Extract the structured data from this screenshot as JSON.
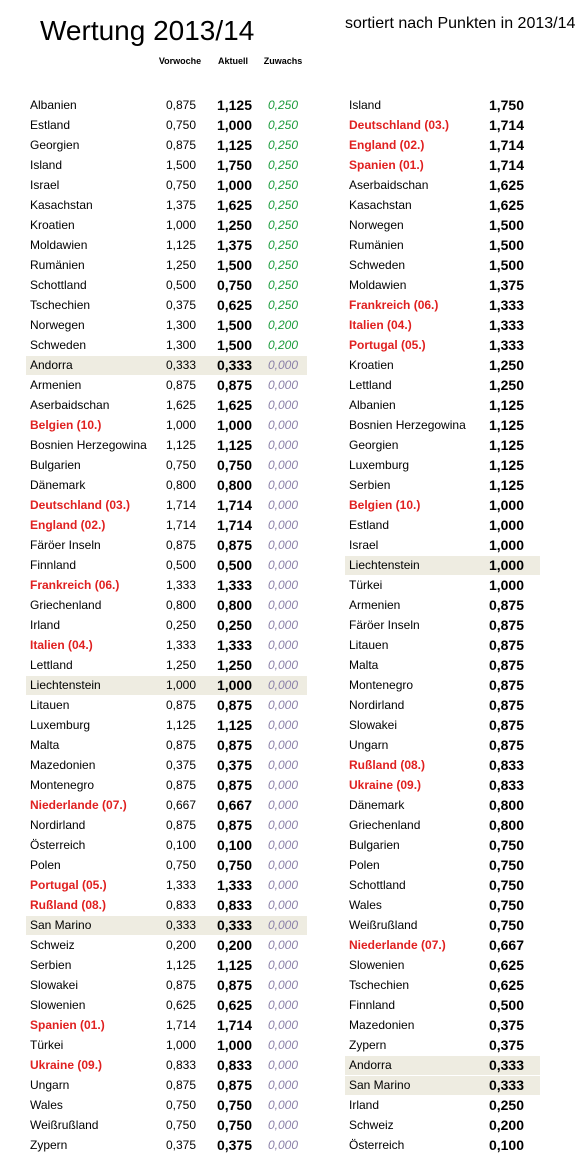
{
  "header": {
    "title": "Wertung 2013/14",
    "sort_note": "sortiert nach Punkten in 2013/14",
    "col_vorwoche": "Vorwoche",
    "col_aktuell": "Aktuell",
    "col_zuwachs": "Zuwachs"
  },
  "colors": {
    "red": "#e02020",
    "gain": "#1a9a3a",
    "none": "#8a80a8",
    "highlight": "#eeece1"
  },
  "left": [
    {
      "name": "Albanien",
      "vorwoche": "0,875",
      "aktuell": "1,125",
      "zuwachs": "0,250",
      "gain": true
    },
    {
      "name": "Estland",
      "vorwoche": "0,750",
      "aktuell": "1,000",
      "zuwachs": "0,250",
      "gain": true
    },
    {
      "name": "Georgien",
      "vorwoche": "0,875",
      "aktuell": "1,125",
      "zuwachs": "0,250",
      "gain": true
    },
    {
      "name": "Island",
      "vorwoche": "1,500",
      "aktuell": "1,750",
      "zuwachs": "0,250",
      "gain": true
    },
    {
      "name": "Israel",
      "vorwoche": "0,750",
      "aktuell": "1,000",
      "zuwachs": "0,250",
      "gain": true
    },
    {
      "name": "Kasachstan",
      "vorwoche": "1,375",
      "aktuell": "1,625",
      "zuwachs": "0,250",
      "gain": true
    },
    {
      "name": "Kroatien",
      "vorwoche": "1,000",
      "aktuell": "1,250",
      "zuwachs": "0,250",
      "gain": true
    },
    {
      "name": "Moldawien",
      "vorwoche": "1,125",
      "aktuell": "1,375",
      "zuwachs": "0,250",
      "gain": true
    },
    {
      "name": "Rumänien",
      "vorwoche": "1,250",
      "aktuell": "1,500",
      "zuwachs": "0,250",
      "gain": true
    },
    {
      "name": "Schottland",
      "vorwoche": "0,500",
      "aktuell": "0,750",
      "zuwachs": "0,250",
      "gain": true
    },
    {
      "name": "Tschechien",
      "vorwoche": "0,375",
      "aktuell": "0,625",
      "zuwachs": "0,250",
      "gain": true
    },
    {
      "name": "Norwegen",
      "vorwoche": "1,300",
      "aktuell": "1,500",
      "zuwachs": "0,200",
      "gain": true
    },
    {
      "name": "Schweden",
      "vorwoche": "1,300",
      "aktuell": "1,500",
      "zuwachs": "0,200",
      "gain": true
    },
    {
      "name": "Andorra",
      "vorwoche": "0,333",
      "aktuell": "0,333",
      "zuwachs": "0,000",
      "highlight": true
    },
    {
      "name": "Armenien",
      "vorwoche": "0,875",
      "aktuell": "0,875",
      "zuwachs": "0,000"
    },
    {
      "name": "Aserbaidschan",
      "vorwoche": "1,625",
      "aktuell": "1,625",
      "zuwachs": "0,000"
    },
    {
      "name": "Belgien (10.)",
      "vorwoche": "1,000",
      "aktuell": "1,000",
      "zuwachs": "0,000",
      "red": true
    },
    {
      "name": "Bosnien Herzegowina",
      "vorwoche": "1,125",
      "aktuell": "1,125",
      "zuwachs": "0,000"
    },
    {
      "name": "Bulgarien",
      "vorwoche": "0,750",
      "aktuell": "0,750",
      "zuwachs": "0,000"
    },
    {
      "name": "Dänemark",
      "vorwoche": "0,800",
      "aktuell": "0,800",
      "zuwachs": "0,000"
    },
    {
      "name": "Deutschland (03.)",
      "vorwoche": "1,714",
      "aktuell": "1,714",
      "zuwachs": "0,000",
      "red": true
    },
    {
      "name": "England (02.)",
      "vorwoche": "1,714",
      "aktuell": "1,714",
      "zuwachs": "0,000",
      "red": true
    },
    {
      "name": "Färöer Inseln",
      "vorwoche": "0,875",
      "aktuell": "0,875",
      "zuwachs": "0,000"
    },
    {
      "name": "Finnland",
      "vorwoche": "0,500",
      "aktuell": "0,500",
      "zuwachs": "0,000"
    },
    {
      "name": "Frankreich (06.)",
      "vorwoche": "1,333",
      "aktuell": "1,333",
      "zuwachs": "0,000",
      "red": true
    },
    {
      "name": "Griechenland",
      "vorwoche": "0,800",
      "aktuell": "0,800",
      "zuwachs": "0,000"
    },
    {
      "name": "Irland",
      "vorwoche": "0,250",
      "aktuell": "0,250",
      "zuwachs": "0,000"
    },
    {
      "name": "Italien (04.)",
      "vorwoche": "1,333",
      "aktuell": "1,333",
      "zuwachs": "0,000",
      "red": true
    },
    {
      "name": "Lettland",
      "vorwoche": "1,250",
      "aktuell": "1,250",
      "zuwachs": "0,000"
    },
    {
      "name": "Liechtenstein",
      "vorwoche": "1,000",
      "aktuell": "1,000",
      "zuwachs": "0,000",
      "highlight": true
    },
    {
      "name": "Litauen",
      "vorwoche": "0,875",
      "aktuell": "0,875",
      "zuwachs": "0,000"
    },
    {
      "name": "Luxemburg",
      "vorwoche": "1,125",
      "aktuell": "1,125",
      "zuwachs": "0,000"
    },
    {
      "name": "Malta",
      "vorwoche": "0,875",
      "aktuell": "0,875",
      "zuwachs": "0,000"
    },
    {
      "name": "Mazedonien",
      "vorwoche": "0,375",
      "aktuell": "0,375",
      "zuwachs": "0,000"
    },
    {
      "name": "Montenegro",
      "vorwoche": "0,875",
      "aktuell": "0,875",
      "zuwachs": "0,000"
    },
    {
      "name": "Niederlande (07.)",
      "vorwoche": "0,667",
      "aktuell": "0,667",
      "zuwachs": "0,000",
      "red": true
    },
    {
      "name": "Nordirland",
      "vorwoche": "0,875",
      "aktuell": "0,875",
      "zuwachs": "0,000"
    },
    {
      "name": "Österreich",
      "vorwoche": "0,100",
      "aktuell": "0,100",
      "zuwachs": "0,000"
    },
    {
      "name": "Polen",
      "vorwoche": "0,750",
      "aktuell": "0,750",
      "zuwachs": "0,000"
    },
    {
      "name": "Portugal (05.)",
      "vorwoche": "1,333",
      "aktuell": "1,333",
      "zuwachs": "0,000",
      "red": true
    },
    {
      "name": "Rußland (08.)",
      "vorwoche": "0,833",
      "aktuell": "0,833",
      "zuwachs": "0,000",
      "red": true
    },
    {
      "name": "San Marino",
      "vorwoche": "0,333",
      "aktuell": "0,333",
      "zuwachs": "0,000",
      "highlight": true
    },
    {
      "name": "Schweiz",
      "vorwoche": "0,200",
      "aktuell": "0,200",
      "zuwachs": "0,000"
    },
    {
      "name": "Serbien",
      "vorwoche": "1,125",
      "aktuell": "1,125",
      "zuwachs": "0,000"
    },
    {
      "name": "Slowakei",
      "vorwoche": "0,875",
      "aktuell": "0,875",
      "zuwachs": "0,000"
    },
    {
      "name": "Slowenien",
      "vorwoche": "0,625",
      "aktuell": "0,625",
      "zuwachs": "0,000"
    },
    {
      "name": "Spanien (01.)",
      "vorwoche": "1,714",
      "aktuell": "1,714",
      "zuwachs": "0,000",
      "red": true
    },
    {
      "name": "Türkei",
      "vorwoche": "1,000",
      "aktuell": "1,000",
      "zuwachs": "0,000"
    },
    {
      "name": "Ukraine (09.)",
      "vorwoche": "0,833",
      "aktuell": "0,833",
      "zuwachs": "0,000",
      "red": true
    },
    {
      "name": "Ungarn",
      "vorwoche": "0,875",
      "aktuell": "0,875",
      "zuwachs": "0,000"
    },
    {
      "name": "Wales",
      "vorwoche": "0,750",
      "aktuell": "0,750",
      "zuwachs": "0,000"
    },
    {
      "name": "Weißrußland",
      "vorwoche": "0,750",
      "aktuell": "0,750",
      "zuwachs": "0,000"
    },
    {
      "name": "Zypern",
      "vorwoche": "0,375",
      "aktuell": "0,375",
      "zuwachs": "0,000"
    }
  ],
  "right": [
    {
      "name": "Island",
      "aktuell": "1,750"
    },
    {
      "name": "Deutschland (03.)",
      "aktuell": "1,714",
      "red": true
    },
    {
      "name": "England (02.)",
      "aktuell": "1,714",
      "red": true
    },
    {
      "name": "Spanien (01.)",
      "aktuell": "1,714",
      "red": true
    },
    {
      "name": "Aserbaidschan",
      "aktuell": "1,625"
    },
    {
      "name": "Kasachstan",
      "aktuell": "1,625"
    },
    {
      "name": "Norwegen",
      "aktuell": "1,500"
    },
    {
      "name": "Rumänien",
      "aktuell": "1,500"
    },
    {
      "name": "Schweden",
      "aktuell": "1,500"
    },
    {
      "name": "Moldawien",
      "aktuell": "1,375"
    },
    {
      "name": "Frankreich (06.)",
      "aktuell": "1,333",
      "red": true
    },
    {
      "name": "Italien (04.)",
      "aktuell": "1,333",
      "red": true
    },
    {
      "name": "Portugal (05.)",
      "aktuell": "1,333",
      "red": true
    },
    {
      "name": "Kroatien",
      "aktuell": "1,250"
    },
    {
      "name": "Lettland",
      "aktuell": "1,250"
    },
    {
      "name": "Albanien",
      "aktuell": "1,125"
    },
    {
      "name": "Bosnien Herzegowina",
      "aktuell": "1,125"
    },
    {
      "name": "Georgien",
      "aktuell": "1,125"
    },
    {
      "name": "Luxemburg",
      "aktuell": "1,125"
    },
    {
      "name": "Serbien",
      "aktuell": "1,125"
    },
    {
      "name": "Belgien (10.)",
      "aktuell": "1,000",
      "red": true
    },
    {
      "name": "Estland",
      "aktuell": "1,000"
    },
    {
      "name": "Israel",
      "aktuell": "1,000"
    },
    {
      "name": "Liechtenstein",
      "aktuell": "1,000",
      "highlight": true
    },
    {
      "name": "Türkei",
      "aktuell": "1,000"
    },
    {
      "name": "Armenien",
      "aktuell": "0,875"
    },
    {
      "name": "Färöer Inseln",
      "aktuell": "0,875"
    },
    {
      "name": "Litauen",
      "aktuell": "0,875"
    },
    {
      "name": "Malta",
      "aktuell": "0,875"
    },
    {
      "name": "Montenegro",
      "aktuell": "0,875"
    },
    {
      "name": "Nordirland",
      "aktuell": "0,875"
    },
    {
      "name": "Slowakei",
      "aktuell": "0,875"
    },
    {
      "name": "Ungarn",
      "aktuell": "0,875"
    },
    {
      "name": "Rußland (08.)",
      "aktuell": "0,833",
      "red": true
    },
    {
      "name": "Ukraine (09.)",
      "aktuell": "0,833",
      "red": true
    },
    {
      "name": "Dänemark",
      "aktuell": "0,800"
    },
    {
      "name": "Griechenland",
      "aktuell": "0,800"
    },
    {
      "name": "Bulgarien",
      "aktuell": "0,750"
    },
    {
      "name": "Polen",
      "aktuell": "0,750"
    },
    {
      "name": "Schottland",
      "aktuell": "0,750"
    },
    {
      "name": "Wales",
      "aktuell": "0,750"
    },
    {
      "name": "Weißrußland",
      "aktuell": "0,750"
    },
    {
      "name": "Niederlande (07.)",
      "aktuell": "0,667",
      "red": true
    },
    {
      "name": "Slowenien",
      "aktuell": "0,625"
    },
    {
      "name": "Tschechien",
      "aktuell": "0,625"
    },
    {
      "name": "Finnland",
      "aktuell": "0,500"
    },
    {
      "name": "Mazedonien",
      "aktuell": "0,375"
    },
    {
      "name": "Zypern",
      "aktuell": "0,375"
    },
    {
      "name": "Andorra",
      "aktuell": "0,333",
      "highlight": true
    },
    {
      "name": "San Marino",
      "aktuell": "0,333",
      "highlight": true
    },
    {
      "name": "Irland",
      "aktuell": "0,250"
    },
    {
      "name": "Schweiz",
      "aktuell": "0,200"
    },
    {
      "name": "Österreich",
      "aktuell": "0,100"
    }
  ]
}
